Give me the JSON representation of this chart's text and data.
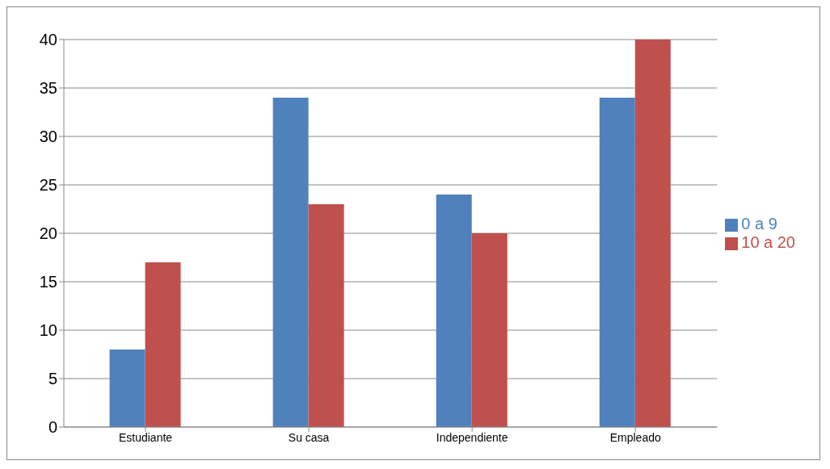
{
  "chart_data": {
    "type": "bar",
    "categories": [
      "Estudiante",
      "Su casa",
      "Independiente",
      "Empleado"
    ],
    "series": [
      {
        "name": "0 a 9",
        "color": "#4f81bd",
        "values": [
          8,
          34,
          24,
          34
        ]
      },
      {
        "name": "10 a 20",
        "color": "#c0504d",
        "values": [
          17,
          23,
          20,
          40
        ]
      }
    ],
    "ylim": [
      0,
      40
    ],
    "yticks": [
      0,
      5,
      10,
      15,
      20,
      25,
      30,
      35,
      40
    ],
    "grid": "y",
    "legend": "right"
  }
}
